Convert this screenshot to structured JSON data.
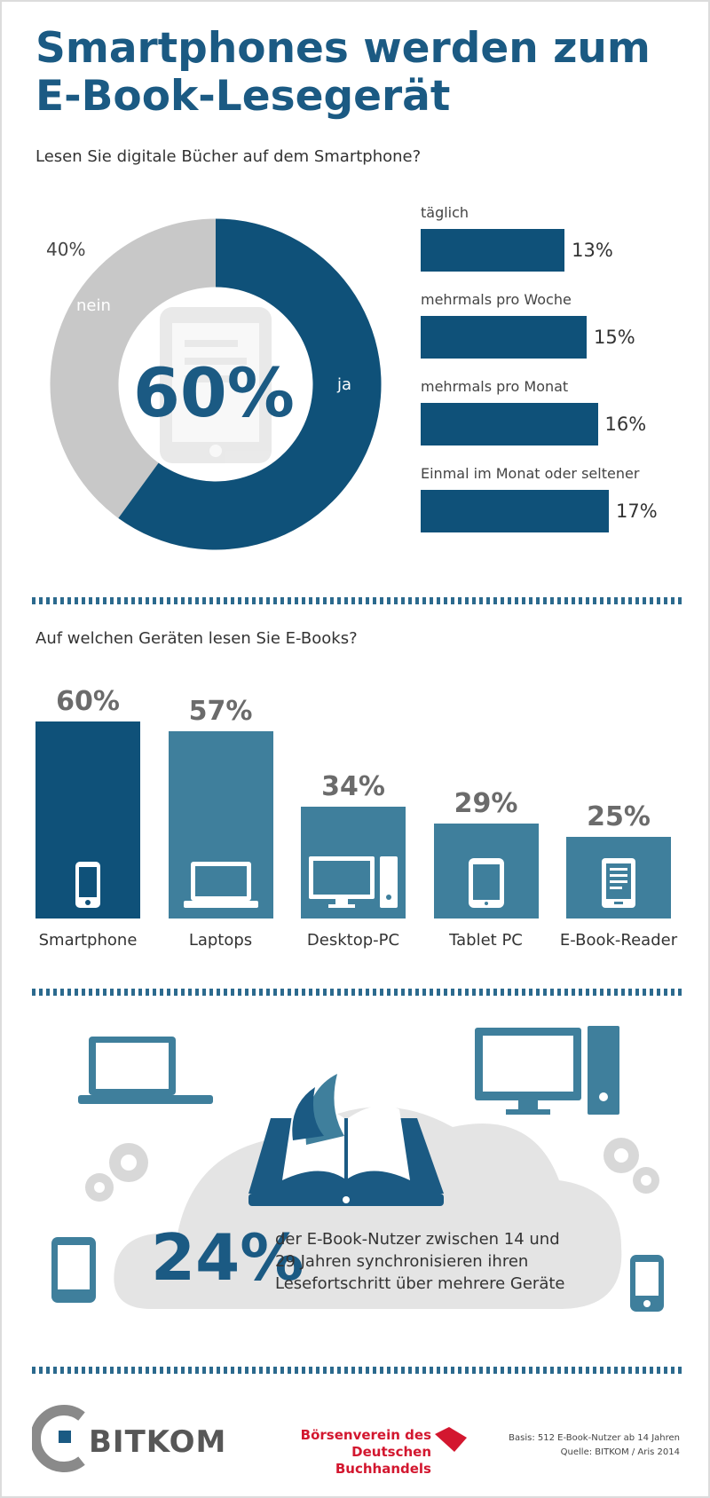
{
  "title_line1": "Smartphones werden zum",
  "title_line2": "E-Book-Lesegerät",
  "section1": {
    "question": "Lesen Sie digitale Bücher auf dem Smartphone?",
    "donut": {
      "center_label": "60%",
      "ja_label": "ja",
      "nein_label": "nein",
      "nein_pct_label": "40%"
    },
    "frequency_bars": [
      {
        "label": "täglich",
        "value_label": "13%"
      },
      {
        "label": "mehrmals pro Woche",
        "value_label": "15%"
      },
      {
        "label": "mehrmals pro Monat",
        "value_label": "16%"
      },
      {
        "label": "Einmal im Monat oder seltener",
        "value_label": "17%"
      }
    ]
  },
  "section2": {
    "question": "Auf welchen Geräten lesen Sie E-Books?",
    "bars": [
      {
        "label": "Smartphone",
        "value_label": "60%",
        "icon": "smartphone-icon"
      },
      {
        "label": "Laptops",
        "value_label": "57%",
        "icon": "laptop-icon"
      },
      {
        "label": "Desktop-PC",
        "value_label": "34%",
        "icon": "desktop-pc-icon"
      },
      {
        "label": "Tablet PC",
        "value_label": "29%",
        "icon": "tablet-icon"
      },
      {
        "label": "E-Book-Reader",
        "value_label": "25%",
        "icon": "ebook-reader-icon"
      }
    ]
  },
  "section3": {
    "percent": "24%",
    "text": "der E-Book-Nutzer zwischen 14 und 29 Jahren synchronisieren ihren Lesefortschritt über mehrere Geräte",
    "icons": [
      "laptop-icon",
      "desktop-pc-icon",
      "gear-icon",
      "open-book-tablet-icon",
      "tablet-icon",
      "smartphone-icon",
      "cloud-icon"
    ]
  },
  "footer": {
    "bitkom": "BITKOM",
    "boersenverein_line1": "Börsenverein des",
    "boersenverein_line2": "Deutschen Buchhandels",
    "basis": "Basis: 512 E-Book-Nutzer ab 14 Jahren",
    "quelle": "Quelle: BITKOM / Aris 2014"
  },
  "colors": {
    "dark_blue": "#0f5179",
    "mid_blue": "#3f7f9c",
    "title_blue": "#1b5a83",
    "grey": "#c8c8c8",
    "cloud_grey": "#e4e4e4",
    "red": "#d3172f"
  },
  "chart_data": [
    {
      "type": "pie",
      "title": "Lesen Sie digitale Bücher auf dem Smartphone?",
      "categories": [
        "ja",
        "nein"
      ],
      "values": [
        60,
        40
      ]
    },
    {
      "type": "bar",
      "orientation": "horizontal",
      "categories": [
        "täglich",
        "mehrmals pro Woche",
        "mehrmals pro Monat",
        "Einmal im Monat oder seltener"
      ],
      "values": [
        13,
        15,
        16,
        17
      ]
    },
    {
      "type": "bar",
      "title": "Auf welchen Geräten lesen Sie E-Books?",
      "categories": [
        "Smartphone",
        "Laptops",
        "Desktop-PC",
        "Tablet PC",
        "E-Book-Reader"
      ],
      "values": [
        60,
        57,
        34,
        29,
        25
      ]
    }
  ]
}
